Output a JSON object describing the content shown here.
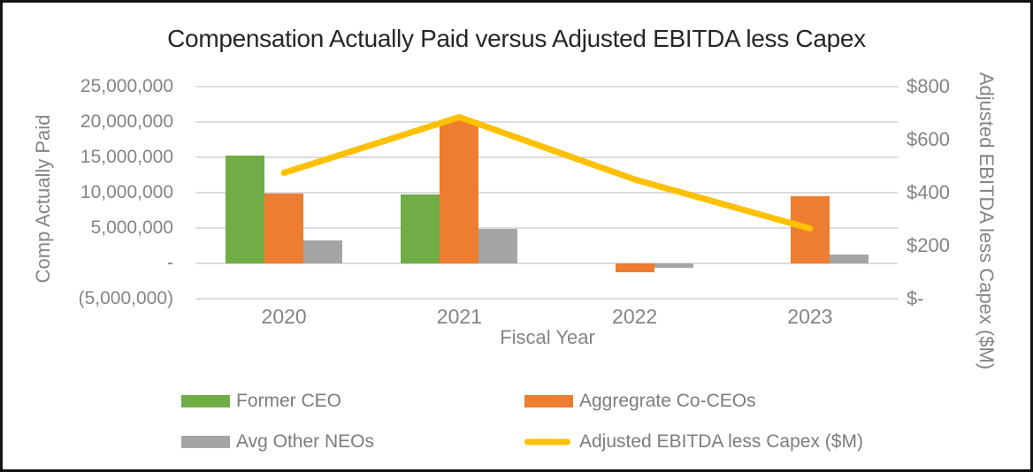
{
  "title": "Compensation Actually Paid versus Adjusted EBITDA less Capex",
  "colors": {
    "former_ceo": "#70AD47",
    "co_ceos": "#ED7D31",
    "other_neos": "#A5A5A5",
    "ebitda_line": "#FFC000",
    "gridline": "#DCDCDC",
    "axis_text": "#848484",
    "title_text": "#262626"
  },
  "chart_data": {
    "type": "bar",
    "subtype": "combo-bar-line-dual-axis",
    "grid": true,
    "legend_position": "bottom",
    "categories": [
      "2020",
      "2021",
      "2022",
      "2023"
    ],
    "xlabel": "Fiscal Year",
    "ylabel_left": "Comp Actually Paid",
    "ylabel_right": "Adjusted EBITDA less Capex ($M)",
    "left_axis": {
      "min": -5000000,
      "max": 25000000,
      "tick_step": 5000000,
      "tick_labels": [
        "25,000,000",
        "20,000,000",
        "15,000,000",
        "10,000,000",
        "5,000,000",
        "-",
        "(5,000,000)"
      ]
    },
    "right_axis": {
      "min": 0,
      "max": 800,
      "tick_step": 200,
      "tick_labels": [
        "$800",
        "$600",
        "$400",
        "$200",
        "$-"
      ]
    },
    "series": [
      {
        "name": "Former CEO",
        "type": "bar",
        "axis": "left",
        "color": "#70AD47",
        "values": [
          15300000,
          9700000,
          0,
          0
        ]
      },
      {
        "name": "Aggregrate Co-CEOs",
        "type": "bar",
        "axis": "left",
        "color": "#ED7D31",
        "values": [
          9900000,
          20300000,
          -1300000,
          9500000
        ]
      },
      {
        "name": "Avg Other NEOs",
        "type": "bar",
        "axis": "left",
        "color": "#A5A5A5",
        "values": [
          3300000,
          4900000,
          -600000,
          1200000
        ]
      },
      {
        "name": "Adjusted EBITDA less Capex ($M)",
        "type": "line",
        "axis": "right",
        "color": "#FFC000",
        "values": [
          475,
          685,
          450,
          265
        ]
      }
    ]
  }
}
